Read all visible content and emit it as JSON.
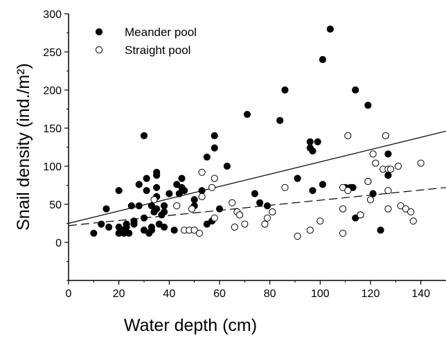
{
  "chart_data": {
    "type": "scatter",
    "title": "",
    "xlabel": "Water depth (cm)",
    "ylabel": "Snail density (ind./m²)",
    "xlim": [
      0,
      150
    ],
    "ylim": [
      -50,
      300
    ],
    "x_ticks": [
      0,
      20,
      40,
      60,
      80,
      100,
      120,
      140
    ],
    "y_ticks": [
      0,
      50,
      100,
      150,
      200,
      250,
      300
    ],
    "grid": false,
    "legend_position": "top-left",
    "series": [
      {
        "name": "Meander pool",
        "marker": "filled-circle",
        "color": "#000000",
        "points": [
          [
            10,
            12
          ],
          [
            13,
            24
          ],
          [
            15,
            44
          ],
          [
            16,
            20
          ],
          [
            20,
            68
          ],
          [
            20,
            20
          ],
          [
            20,
            12
          ],
          [
            22,
            16
          ],
          [
            22,
            12
          ],
          [
            23,
            24
          ],
          [
            23,
            20
          ],
          [
            24,
            12
          ],
          [
            25,
            48
          ],
          [
            26,
            24
          ],
          [
            26,
            28
          ],
          [
            28,
            76
          ],
          [
            28,
            48
          ],
          [
            30,
            140
          ],
          [
            30,
            16
          ],
          [
            30,
            32
          ],
          [
            31,
            84
          ],
          [
            31,
            68
          ],
          [
            32,
            12
          ],
          [
            33,
            48
          ],
          [
            33,
            16
          ],
          [
            33,
            20
          ],
          [
            34,
            40
          ],
          [
            35,
            92
          ],
          [
            35,
            88
          ],
          [
            35,
            72
          ],
          [
            35,
            60
          ],
          [
            35,
            44
          ],
          [
            36,
            24
          ],
          [
            37,
            36
          ],
          [
            38,
            48
          ],
          [
            38,
            20
          ],
          [
            38,
            40
          ],
          [
            40,
            64
          ],
          [
            42,
            16
          ],
          [
            43,
            76
          ],
          [
            44,
            64
          ],
          [
            45,
            72
          ],
          [
            45,
            84
          ],
          [
            46,
            68
          ],
          [
            50,
            56
          ],
          [
            50,
            48
          ],
          [
            53,
            68
          ],
          [
            55,
            112
          ],
          [
            55,
            24
          ],
          [
            57,
            28
          ],
          [
            58,
            140
          ],
          [
            58,
            124
          ],
          [
            60,
            44
          ],
          [
            63,
            100
          ],
          [
            71,
            168
          ],
          [
            74,
            64
          ],
          [
            76,
            52
          ],
          [
            79,
            48
          ],
          [
            84,
            160
          ],
          [
            86,
            200
          ],
          [
            91,
            84
          ],
          [
            96,
            132
          ],
          [
            96,
            124
          ],
          [
            97,
            120
          ],
          [
            97,
            68
          ],
          [
            99,
            132
          ],
          [
            101,
            76
          ],
          [
            101,
            240
          ],
          [
            104,
            280
          ],
          [
            110,
            72
          ],
          [
            112,
            72
          ],
          [
            113,
            72
          ],
          [
            114,
            200
          ],
          [
            114,
            32
          ],
          [
            116,
            36
          ],
          [
            119,
            180
          ],
          [
            119,
            80
          ],
          [
            121,
            64
          ],
          [
            124,
            16
          ],
          [
            127,
            88
          ],
          [
            127,
            116
          ]
        ],
        "trend": {
          "style": "solid",
          "x": [
            0,
            150
          ],
          "y": [
            25,
            146
          ]
        }
      },
      {
        "name": "Straight pool",
        "marker": "open-circle",
        "color": "#000000",
        "points": [
          [
            34,
            56
          ],
          [
            43,
            48
          ],
          [
            46,
            16
          ],
          [
            48,
            16
          ],
          [
            49,
            44
          ],
          [
            50,
            16
          ],
          [
            52,
            12
          ],
          [
            53,
            92
          ],
          [
            53,
            60
          ],
          [
            57,
            72
          ],
          [
            58,
            84
          ],
          [
            58,
            32
          ],
          [
            65,
            52
          ],
          [
            66,
            20
          ],
          [
            67,
            40
          ],
          [
            68,
            36
          ],
          [
            70,
            24
          ],
          [
            78,
            24
          ],
          [
            79,
            32
          ],
          [
            81,
            40
          ],
          [
            86,
            72
          ],
          [
            91,
            8
          ],
          [
            96,
            16
          ],
          [
            100,
            28
          ],
          [
            109,
            72
          ],
          [
            109,
            44
          ],
          [
            109,
            12
          ],
          [
            111,
            140
          ],
          [
            111,
            68
          ],
          [
            116,
            36
          ],
          [
            119,
            80
          ],
          [
            120,
            56
          ],
          [
            121,
            116
          ],
          [
            122,
            104
          ],
          [
            125,
            96
          ],
          [
            126,
            140
          ],
          [
            127,
            96
          ],
          [
            127,
            68
          ],
          [
            127,
            44
          ],
          [
            128,
            96
          ],
          [
            131,
            100
          ],
          [
            132,
            48
          ],
          [
            134,
            44
          ],
          [
            136,
            40
          ],
          [
            137,
            28
          ],
          [
            140,
            104
          ]
        ],
        "trend": {
          "style": "dashed",
          "x": [
            0,
            150
          ],
          "y": [
            22,
            72
          ]
        }
      }
    ]
  }
}
